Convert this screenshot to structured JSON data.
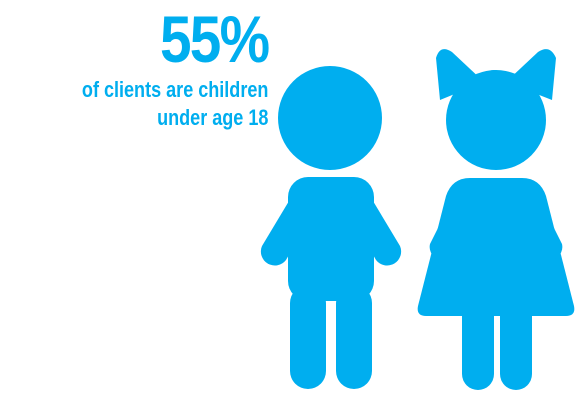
{
  "stat": {
    "value": "55%",
    "caption_line1": "of clients are children",
    "caption_line2": "under age 18"
  },
  "figures": {
    "boy_icon": "boy-icon",
    "girl_icon": "girl-icon"
  },
  "colors": {
    "accent": "#00aeef"
  }
}
